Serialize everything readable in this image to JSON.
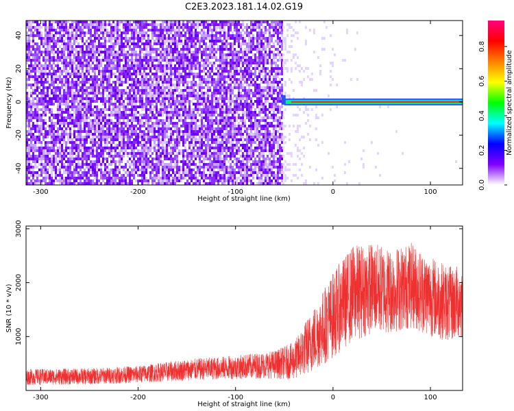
{
  "title": "C2E3.2023.181.14.02.G19",
  "chart_data": [
    {
      "type": "heatmap",
      "xlabel": "Height of straight line (km)",
      "ylabel": "Frequency (Hz)",
      "xlim": [
        -315,
        133
      ],
      "ylim": [
        -50,
        49
      ],
      "xticks": [
        -300,
        -200,
        -100,
        0,
        100
      ],
      "yticks": [
        -40,
        -20,
        0,
        20,
        40
      ],
      "carrier_frequency_hz": 0,
      "noise_floor_end_km": -52,
      "carrier_start_km": -50,
      "colorbar": {
        "label": "Normalized spectral amplitude",
        "range": [
          0.0,
          0.95
        ],
        "ticks": [
          0.0,
          0.2,
          0.4,
          0.6,
          0.8
        ],
        "colors": [
          "#ffffff",
          "#8000ff",
          "#0000ff",
          "#00ffff",
          "#00ff00",
          "#ffff00",
          "#ff8000",
          "#ff0000",
          "#ff0080"
        ]
      },
      "grid": false
    },
    {
      "type": "line",
      "xlabel": "Height of straight line (km)",
      "ylabel": "SNR (10 * v/v)",
      "xlim": [
        -315,
        133
      ],
      "ylim": [
        0,
        3050
      ],
      "xticks": [
        -300,
        -200,
        -100,
        0,
        100
      ],
      "yticks": [
        1000,
        2000,
        3000
      ],
      "color": "#ef3030",
      "envelope_x": [
        -315,
        -250,
        -200,
        -150,
        -100,
        -60,
        -40,
        -20,
        0,
        20,
        40,
        60,
        80,
        100,
        120,
        133
      ],
      "envelope_y": [
        250,
        260,
        300,
        380,
        430,
        480,
        550,
        950,
        1400,
        1800,
        1900,
        1850,
        1950,
        1750,
        1600,
        1650
      ],
      "envelope_spread": [
        150,
        150,
        160,
        200,
        220,
        260,
        350,
        600,
        800,
        900,
        850,
        800,
        800,
        750,
        700,
        700
      ],
      "grid": false
    }
  ]
}
